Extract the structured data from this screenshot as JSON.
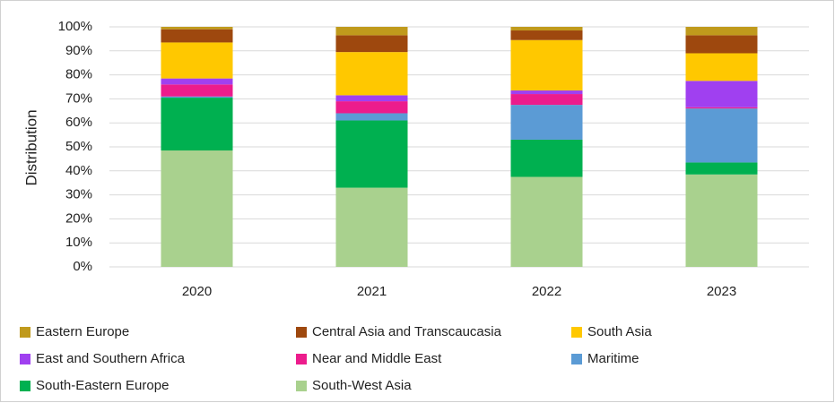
{
  "chart_data": {
    "type": "bar",
    "stacked": true,
    "y_label": "Distribution",
    "categories": [
      "2020",
      "2021",
      "2022",
      "2023"
    ],
    "series": [
      {
        "name": "Eastern Europe",
        "color": "#c09a1c",
        "values": [
          1,
          3.5,
          1.5,
          3.5
        ]
      },
      {
        "name": "Central Asia and Transcaucasia",
        "color": "#9e480e",
        "values": [
          5.5,
          7,
          4,
          7.5
        ]
      },
      {
        "name": "South Asia",
        "color": "#ffc800",
        "values": [
          15,
          18,
          21,
          11.5
        ]
      },
      {
        "name": "East and Southern Africa",
        "color": "#a040f0",
        "values": [
          2.5,
          2.5,
          1.5,
          11
        ]
      },
      {
        "name": "Near and Middle East",
        "color": "#ec1c8c",
        "values": [
          5,
          5,
          4.5,
          0.5
        ]
      },
      {
        "name": "Maritime",
        "color": "#5b9bd5",
        "values": [
          0.5,
          3,
          14.5,
          22.5
        ]
      },
      {
        "name": "South-Eastern Europe",
        "color": "#00b050",
        "values": [
          22,
          28,
          15.5,
          5
        ]
      },
      {
        "name": "South-West Asia",
        "color": "#a9d18e",
        "values": [
          48.5,
          33,
          37.5,
          38.5
        ]
      }
    ],
    "ylim": [
      0,
      100
    ],
    "yticks": [
      {
        "value": 0,
        "label": "0%"
      },
      {
        "value": 10,
        "label": "10%"
      },
      {
        "value": 20,
        "label": "20%"
      },
      {
        "value": 30,
        "label": "30%"
      },
      {
        "value": 40,
        "label": "40%"
      },
      {
        "value": 50,
        "label": "50%"
      },
      {
        "value": 60,
        "label": "60%"
      },
      {
        "value": 70,
        "label": "70%"
      },
      {
        "value": 80,
        "label": "80%"
      },
      {
        "value": 90,
        "label": "90%"
      },
      {
        "value": 100,
        "label": "100%"
      }
    ],
    "grid": true,
    "legend": "bottom"
  }
}
